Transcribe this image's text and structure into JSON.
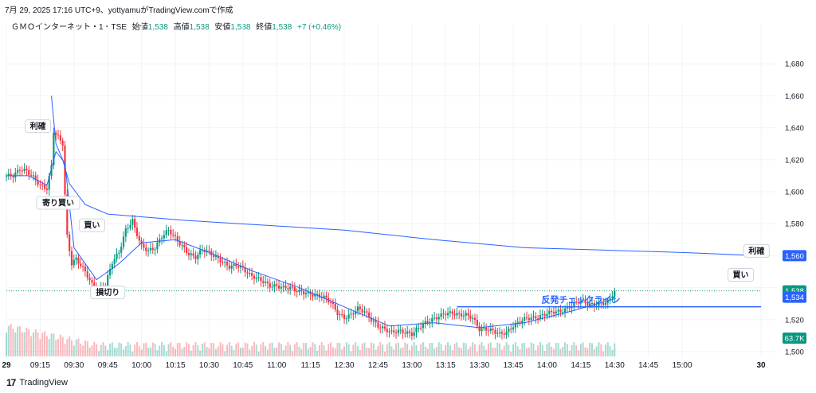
{
  "header": {
    "published": "7月 29, 2025 17:16 UTC+9、yottyamuがTradingView.comで作成"
  },
  "symbol": {
    "name": "ＧＭＯインターネット・1・TSE",
    "open_label": "始値",
    "open": "1,538",
    "high_label": "高値",
    "high": "1,538",
    "low_label": "安値",
    "low": "1,538",
    "close_label": "終値",
    "close": "1,538",
    "change": "+7 (+0.46%)"
  },
  "footer": {
    "brand": "TradingView",
    "logo_icon": "tradingview-logo-icon"
  },
  "colors": {
    "up": "#089981",
    "down": "#f23645",
    "vwap": "#2962ff",
    "ma": "#2962ff",
    "line": "#2962ff"
  },
  "chart_data": {
    "type": "candlestick",
    "ylim": [
      1496,
      1700
    ],
    "y_ticks": [
      "1,500",
      "1,520",
      "1,540",
      "1,560",
      "1,580",
      "1,600",
      "1,620",
      "1,640",
      "1,660",
      "1,680"
    ],
    "y_tick_values": [
      1500,
      1520,
      1540,
      1560,
      1580,
      1600,
      1620,
      1640,
      1660,
      1680
    ],
    "x_ticks": [
      "29",
      "09:15",
      "09:30",
      "09:45",
      "10:00",
      "10:15",
      "10:30",
      "10:45",
      "11:00",
      "11:15",
      "12:30",
      "12:45",
      "13:00",
      "13:15",
      "13:30",
      "13:45",
      "14:00",
      "14:15",
      "14:30",
      "14:45",
      "15:00",
      "30"
    ],
    "x_tick_index": [
      0,
      15,
      30,
      45,
      60,
      75,
      90,
      105,
      120,
      135,
      150,
      165,
      180,
      195,
      210,
      225,
      240,
      255,
      270,
      285,
      300,
      335
    ],
    "price_series": [
      [
        0,
        1610
      ],
      [
        3,
        1610
      ],
      [
        6,
        1614
      ],
      [
        9,
        1613
      ],
      [
        12,
        1609
      ],
      [
        15,
        1604
      ],
      [
        18,
        1602
      ],
      [
        20,
        1616
      ],
      [
        21,
        1638
      ],
      [
        23,
        1634
      ],
      [
        25,
        1630
      ],
      [
        26,
        1598
      ],
      [
        27,
        1572
      ],
      [
        29,
        1555
      ],
      [
        31,
        1558
      ],
      [
        33,
        1554
      ],
      [
        35,
        1550
      ],
      [
        38,
        1542
      ],
      [
        41,
        1538
      ],
      [
        44,
        1542
      ],
      [
        47,
        1556
      ],
      [
        50,
        1562
      ],
      [
        53,
        1576
      ],
      [
        56,
        1582
      ],
      [
        57,
        1577
      ],
      [
        60,
        1566
      ],
      [
        63,
        1563
      ],
      [
        66,
        1565
      ],
      [
        69,
        1572
      ],
      [
        72,
        1576
      ],
      [
        75,
        1571
      ],
      [
        78,
        1566
      ],
      [
        81,
        1561
      ],
      [
        84,
        1559
      ],
      [
        87,
        1564
      ],
      [
        90,
        1562
      ],
      [
        93,
        1559
      ],
      [
        96,
        1556
      ],
      [
        99,
        1553
      ],
      [
        102,
        1554
      ],
      [
        105,
        1552
      ],
      [
        108,
        1548
      ],
      [
        111,
        1546
      ],
      [
        114,
        1544
      ],
      [
        117,
        1541
      ],
      [
        120,
        1541
      ],
      [
        123,
        1540
      ],
      [
        126,
        1540
      ],
      [
        129,
        1538
      ],
      [
        132,
        1537
      ],
      [
        135,
        1536
      ],
      [
        138,
        1535
      ],
      [
        141,
        1534
      ],
      [
        144,
        1531
      ],
      [
        147,
        1524
      ],
      [
        150,
        1521
      ],
      [
        153,
        1523
      ],
      [
        156,
        1527
      ],
      [
        159,
        1525
      ],
      [
        162,
        1520
      ],
      [
        165,
        1516
      ],
      [
        168,
        1514
      ],
      [
        171,
        1512
      ],
      [
        174,
        1513
      ],
      [
        177,
        1512
      ],
      [
        180,
        1511
      ],
      [
        183,
        1515
      ],
      [
        186,
        1518
      ],
      [
        189,
        1520
      ],
      [
        192,
        1522
      ],
      [
        195,
        1524
      ],
      [
        198,
        1524
      ],
      [
        201,
        1523
      ],
      [
        204,
        1523
      ],
      [
        207,
        1521
      ],
      [
        210,
        1514
      ],
      [
        213,
        1514
      ],
      [
        216,
        1513
      ],
      [
        219,
        1511
      ],
      [
        222,
        1512
      ],
      [
        225,
        1516
      ],
      [
        228,
        1519
      ],
      [
        231,
        1521
      ],
      [
        234,
        1521
      ],
      [
        237,
        1522
      ],
      [
        240,
        1524
      ],
      [
        243,
        1525
      ],
      [
        246,
        1525
      ],
      [
        249,
        1527
      ],
      [
        252,
        1530
      ],
      [
        255,
        1532
      ],
      [
        258,
        1530
      ],
      [
        261,
        1529
      ],
      [
        264,
        1530
      ],
      [
        267,
        1531
      ],
      [
        270,
        1538
      ]
    ],
    "vwap": [
      [
        20,
        1660
      ],
      [
        22,
        1630
      ],
      [
        25,
        1620
      ],
      [
        28,
        1605
      ],
      [
        35,
        1592
      ],
      [
        45,
        1586
      ],
      [
        80,
        1582
      ],
      [
        150,
        1576
      ],
      [
        190,
        1570
      ],
      [
        230,
        1565
      ],
      [
        300,
        1562
      ],
      [
        335,
        1560
      ]
    ],
    "ma": [
      [
        0,
        1610
      ],
      [
        10,
        1610
      ],
      [
        18,
        1604
      ],
      [
        22,
        1625
      ],
      [
        26,
        1618
      ],
      [
        30,
        1565
      ],
      [
        40,
        1545
      ],
      [
        50,
        1555
      ],
      [
        60,
        1568
      ],
      [
        75,
        1570
      ],
      [
        90,
        1562
      ],
      [
        110,
        1550
      ],
      [
        130,
        1540
      ],
      [
        150,
        1528
      ],
      [
        170,
        1516
      ],
      [
        190,
        1518
      ],
      [
        210,
        1515
      ],
      [
        230,
        1518
      ],
      [
        250,
        1525
      ],
      [
        270,
        1533
      ]
    ],
    "price_labels": [
      {
        "text": "1,560",
        "value": 1560,
        "bg": "#2962ff"
      },
      {
        "text": "1,538",
        "value": 1538,
        "bg": "#089981"
      },
      {
        "text": "1,534",
        "value": 1534,
        "bg": "#2962ff"
      }
    ],
    "volume_label": {
      "text": "63.7K",
      "bg": "#089981"
    },
    "annotations": [
      {
        "text": "利確",
        "x": 14,
        "y": 1641
      },
      {
        "text": "寄り買い",
        "x": 23,
        "y": 1593
      },
      {
        "text": "買い",
        "x": 38,
        "y": 1579
      },
      {
        "text": "損切り",
        "x": 45,
        "y": 1537
      },
      {
        "text": "買い",
        "x": 326,
        "y": 1548
      },
      {
        "text": "利確",
        "x": 333,
        "y": 1563
      }
    ],
    "hline": {
      "text": "反発チェックライン",
      "value": 1528,
      "x_from": 200,
      "x_to": 335
    },
    "current_price": 1538
  }
}
